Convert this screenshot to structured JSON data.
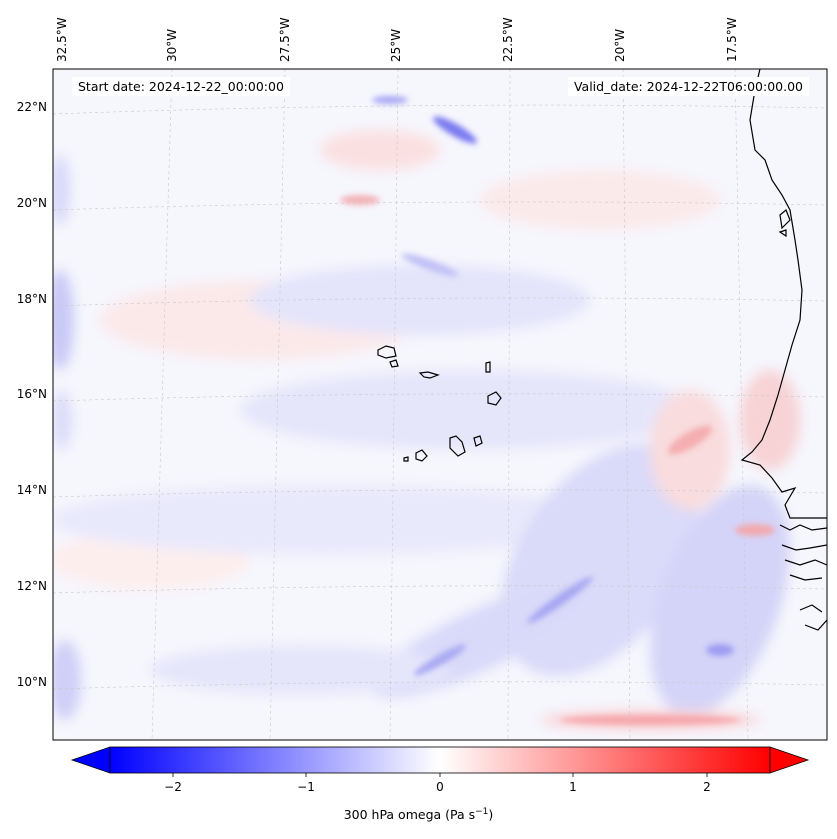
{
  "map": {
    "start_label": "Start date: 2024-12-22_00:00:00",
    "valid_label": "Valid_date: 2024-12-22T06:00:00.00",
    "lon_ticks": [
      "32.5°W",
      "30°W",
      "27.5°W",
      "25°W",
      "22.5°W",
      "20°W",
      "17.5°W"
    ],
    "lat_ticks": [
      "22°N",
      "20°N",
      "18°N",
      "16°N",
      "14°N",
      "12°N",
      "10°N"
    ],
    "field": "300 hPa omega",
    "coastline_color": "#000000",
    "gridline_style": "dashed light grey"
  },
  "colorbar": {
    "label_prefix": "300 hPa omega (Pa s",
    "label_exp": "−1",
    "label_suffix": ")",
    "ticks": [
      "−2",
      "−1",
      "0",
      "1",
      "2"
    ],
    "tick_values": [
      -2,
      -1,
      0,
      1,
      2
    ],
    "range": [
      -2.6,
      2.6
    ],
    "extend": "both",
    "colormap": "bwr",
    "low_color": "#0000ff",
    "mid_color": "#ffffff",
    "high_color": "#ff0000"
  }
}
